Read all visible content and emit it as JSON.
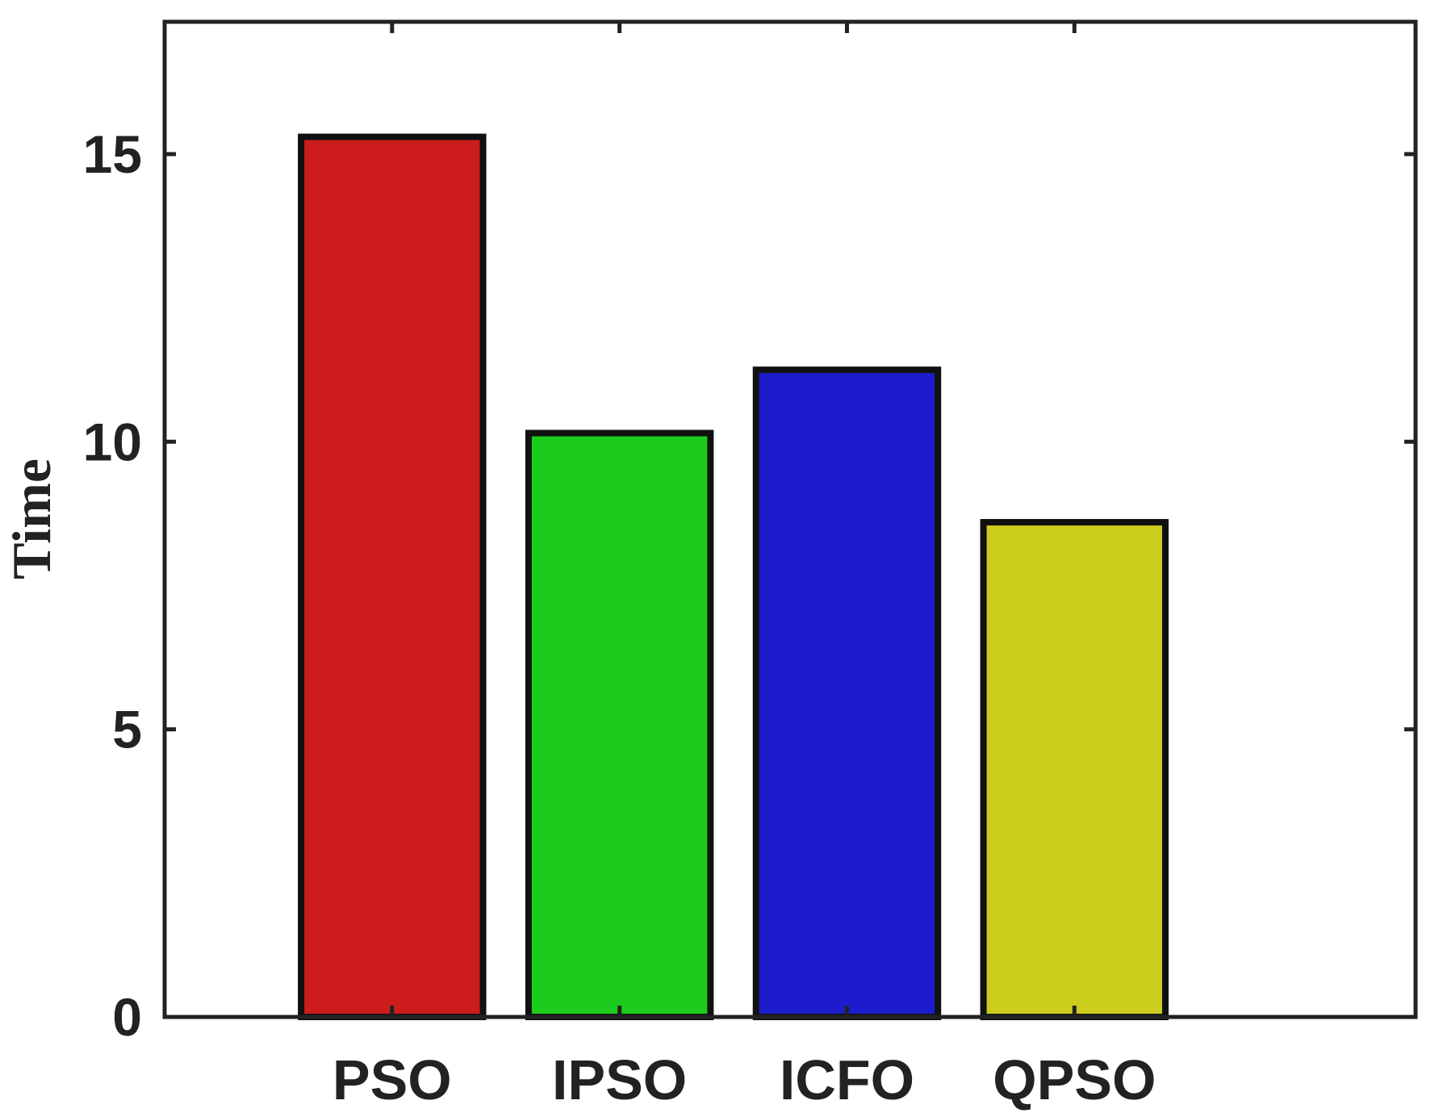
{
  "chart_data": {
    "type": "bar",
    "categories": [
      "PSO",
      "IPSO",
      "ICFO",
      "QPSO"
    ],
    "values": [
      15.3,
      10.15,
      11.25,
      8.6
    ],
    "colors": [
      "#cc1c1c",
      "#1ccc1c",
      "#1c1ccc",
      "#cccc1c"
    ],
    "ylabel": "Time",
    "xlabel": "",
    "title": "",
    "ylim": [
      0,
      17.3
    ],
    "xlim": [
      0,
      5.5
    ],
    "yticks": [
      0,
      5,
      10,
      15
    ],
    "yticklabels": [
      "0",
      "5",
      "10",
      "15"
    ],
    "grid": false,
    "legend": false
  }
}
